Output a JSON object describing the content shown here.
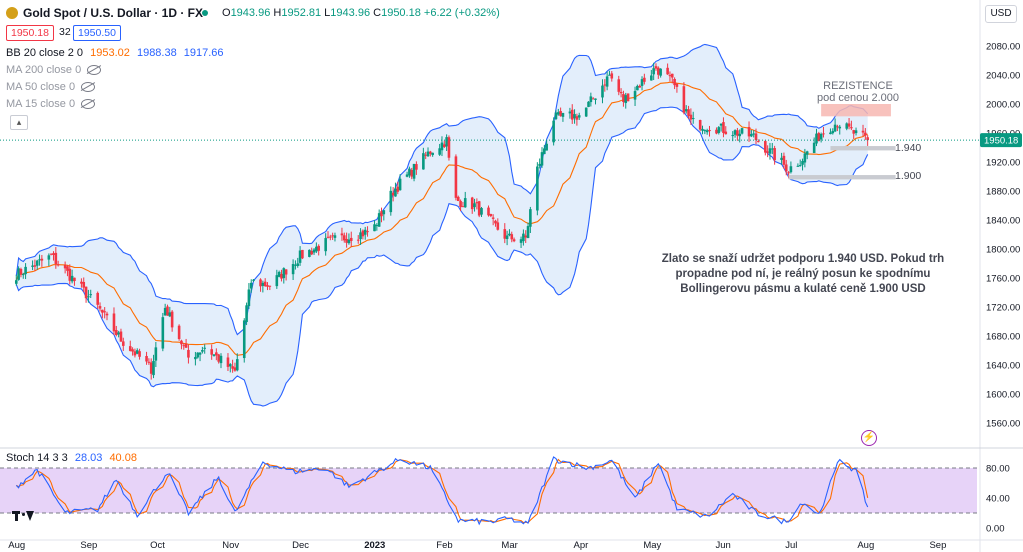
{
  "header": {
    "symbol": "Gold Spot / U.S. Dollar · 1D · FX",
    "ohlc": {
      "o_label": "O",
      "o": "1943.96",
      "h_label": "H",
      "h": "1952.81",
      "l_label": "L",
      "l": "1943.96",
      "c_label": "C",
      "c": "1950.18",
      "change": "+6.22 (+0.32%)"
    },
    "sell_price": "1950.18",
    "spread": "32",
    "buy_price": "1950.50",
    "currency_button": "USD"
  },
  "indicators": {
    "bb": {
      "name": "BB 20 close 2 0",
      "v1": "1953.02",
      "v2": "1988.38",
      "v3": "1917.66"
    },
    "ma200": "MA 200 close 0",
    "ma50": "MA 50 close 0",
    "ma15": "MA 15 close 0"
  },
  "annotations": {
    "resistance_title": "REZISTENCE",
    "resistance_sub": "pod cenou 2.000",
    "level_1940": "1.940",
    "level_1900": "1.900",
    "note": "Zlato se snaží udržet podporu 1.940 USD. Pokud trh propadne pod ní, je reálný posun ke spodnímu Bollingerovu pásmu a kulaté ceně 1.900 USD"
  },
  "stoch": {
    "name": "Stoch 14 3 3",
    "k": "28.03",
    "d": "40.08"
  },
  "colors": {
    "up": "#089981",
    "down": "#f23645",
    "bb_line": "#2962ff",
    "bb_basis": "#ff6d00",
    "bb_fill": "#e3eefb",
    "stoch_fill": "#e7d3f8",
    "k": "#2962ff",
    "d": "#ff6d00",
    "last_price": "#089981"
  },
  "chart_data": [
    {
      "type": "candlestick",
      "title": "Gold Spot / U.S. Dollar · 1D · FX",
      "price_axis_ticks": [
        2080,
        2040,
        2000,
        1960,
        1920,
        1880,
        1840,
        1800,
        1760,
        1720,
        1680,
        1640,
        1600,
        1560
      ],
      "price_axis_labels": [
        "2080.00",
        "2040.00",
        "2000.00",
        "1960.00",
        "1920.00",
        "1880.00",
        "1840.00",
        "1800.00",
        "1760.00",
        "1720.00",
        "1680.00",
        "1640.00",
        "1600.00",
        "1560.00"
      ],
      "last_price": 1950.18,
      "last_price_label": "1950.18",
      "time_labels": [
        "Aug",
        "Sep",
        "Oct",
        "Nov",
        "Dec",
        "2023",
        "Feb",
        "Mar",
        "Apr",
        "May",
        "Jun",
        "Jul",
        "Aug",
        "Sep"
      ],
      "close_path": [
        [
          "2022-08-01",
          1765
        ],
        [
          "2022-08-16",
          1790
        ],
        [
          "2022-08-25",
          1760
        ],
        [
          "2022-09-05",
          1720
        ],
        [
          "2022-09-15",
          1675
        ],
        [
          "2022-09-28",
          1635
        ],
        [
          "2022-10-04",
          1720
        ],
        [
          "2022-10-14",
          1650
        ],
        [
          "2022-10-21",
          1665
        ],
        [
          "2022-11-03",
          1630
        ],
        [
          "2022-11-10",
          1755
        ],
        [
          "2022-11-18",
          1750
        ],
        [
          "2022-12-01",
          1790
        ],
        [
          "2022-12-13",
          1810
        ],
        [
          "2023-01-01",
          1825
        ],
        [
          "2023-01-10",
          1880
        ],
        [
          "2023-01-26",
          1935
        ],
        [
          "2023-02-02",
          1950
        ],
        [
          "2023-02-05",
          1868
        ],
        [
          "2023-02-14",
          1860
        ],
        [
          "2023-02-28",
          1815
        ],
        [
          "2023-03-08",
          1815
        ],
        [
          "2023-03-13",
          1910
        ],
        [
          "2023-03-20",
          1980
        ],
        [
          "2023-04-01",
          1985
        ],
        [
          "2023-04-13",
          2040
        ],
        [
          "2023-04-19",
          2005
        ],
        [
          "2023-05-03",
          2050
        ],
        [
          "2023-05-10",
          2030
        ],
        [
          "2023-05-18",
          1975
        ],
        [
          "2023-06-01",
          1965
        ],
        [
          "2023-06-14",
          1955
        ],
        [
          "2023-06-29",
          1910
        ],
        [
          "2023-07-05",
          1925
        ],
        [
          "2023-07-13",
          1960
        ],
        [
          "2023-07-20",
          1975
        ],
        [
          "2023-07-28",
          1958
        ],
        [
          "2023-08-02",
          1950.18
        ]
      ],
      "bollinger": {
        "length": 20,
        "basis": 1953.02,
        "upper": 1988.38,
        "lower": 1917.66
      },
      "ylim": [
        1550,
        2090
      ]
    },
    {
      "type": "line",
      "title": "Stoch 14 3 3",
      "y_axis_labels": [
        "80.00",
        "40.00",
        "0.00"
      ],
      "bands": [
        20,
        80
      ],
      "ylim": [
        0,
        100
      ],
      "series": [
        {
          "name": "%K",
          "last": 28.03
        },
        {
          "name": "%D",
          "last": 40.08
        }
      ],
      "k_path": [
        [
          "2022-08-01",
          55
        ],
        [
          "2022-08-10",
          78
        ],
        [
          "2022-08-22",
          20
        ],
        [
          "2022-09-05",
          25
        ],
        [
          "2022-09-13",
          65
        ],
        [
          "2022-09-22",
          18
        ],
        [
          "2022-10-05",
          75
        ],
        [
          "2022-10-14",
          20
        ],
        [
          "2022-10-27",
          68
        ],
        [
          "2022-11-03",
          20
        ],
        [
          "2022-11-15",
          88
        ],
        [
          "2022-11-28",
          75
        ],
        [
          "2022-12-12",
          80
        ],
        [
          "2022-12-22",
          55
        ],
        [
          "2023-01-13",
          92
        ],
        [
          "2023-01-26",
          80
        ],
        [
          "2023-02-07",
          10
        ],
        [
          "2023-02-21",
          8
        ],
        [
          "2023-03-01",
          12
        ],
        [
          "2023-03-09",
          5
        ],
        [
          "2023-03-20",
          92
        ],
        [
          "2023-04-04",
          80
        ],
        [
          "2023-04-14",
          90
        ],
        [
          "2023-04-24",
          38
        ],
        [
          "2023-05-04",
          88
        ],
        [
          "2023-05-12",
          25
        ],
        [
          "2023-05-25",
          15
        ],
        [
          "2023-06-05",
          45
        ],
        [
          "2023-06-15",
          20
        ],
        [
          "2023-06-28",
          8
        ],
        [
          "2023-07-05",
          35
        ],
        [
          "2023-07-12",
          18
        ],
        [
          "2023-07-21",
          92
        ],
        [
          "2023-07-28",
          75
        ],
        [
          "2023-08-02",
          28.03
        ]
      ]
    }
  ]
}
